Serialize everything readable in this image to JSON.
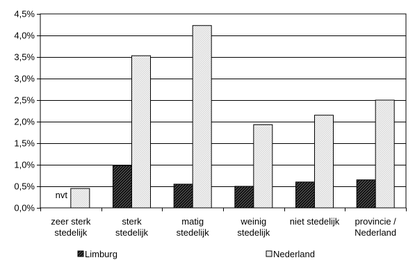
{
  "chart_data": {
    "type": "bar",
    "categories": [
      [
        "zeer sterk",
        "stedelijk"
      ],
      [
        "sterk",
        "stedelijk"
      ],
      [
        "matig",
        "stedelijk"
      ],
      [
        "weinig",
        "stedelijk"
      ],
      [
        "niet stedelijk"
      ],
      [
        "provincie /",
        "Nederland"
      ]
    ],
    "series": [
      {
        "name": "Limburg",
        "values": [
          null,
          0.98,
          0.55,
          0.5,
          0.6,
          0.65
        ],
        "pattern": "dark-hatch"
      },
      {
        "name": "Nederland",
        "values": [
          0.45,
          3.53,
          4.23,
          1.93,
          2.15,
          2.5
        ],
        "pattern": "light-hatch"
      }
    ],
    "annotations": [
      {
        "text": "nvt",
        "category_index": 0,
        "series_index": 0
      }
    ],
    "y_ticks": [
      "0,0%",
      "0,5%",
      "1,0%",
      "1,5%",
      "2,0%",
      "2,5%",
      "3,0%",
      "3,5%",
      "4,0%",
      "4,5%"
    ],
    "ylim": [
      0,
      4.5
    ],
    "y_step": 0.5,
    "title": "",
    "xlabel": "",
    "ylabel": "",
    "grid": true,
    "legend_position": "bottom"
  }
}
